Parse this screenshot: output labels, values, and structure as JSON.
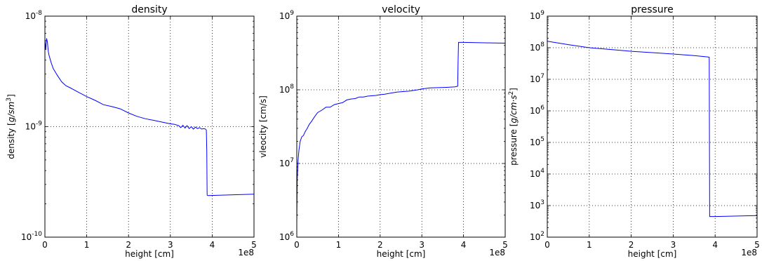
{
  "chart_data": [
    {
      "type": "line",
      "title": "density",
      "xlabel": "height [cm]",
      "ylabel": "density [g/sm^3]",
      "ylabel_parts": [
        "density [",
        "g/sm",
        "3",
        "]"
      ],
      "xlim": [
        0,
        5
      ],
      "x_ticks": [
        "0",
        "1",
        "2",
        "3",
        "4",
        "5"
      ],
      "x_offset_label": "1e8",
      "yscale": "log",
      "ylim": [
        1e-10,
        1e-08
      ],
      "y_ticks": [
        {
          "value": 1e-10,
          "base": "10",
          "exp": "-10"
        },
        {
          "value": 1e-09,
          "base": "10",
          "exp": "-9"
        },
        {
          "value": 1e-08,
          "base": "10",
          "exp": "-8"
        }
      ],
      "grid": true,
      "color": "#0000ff",
      "x": [
        0,
        0.02,
        0.04,
        0.06,
        0.08,
        0.1,
        0.15,
        0.2,
        0.3,
        0.4,
        0.5,
        0.6,
        0.8,
        1.0,
        1.2,
        1.4,
        1.6,
        1.8,
        2.0,
        2.2,
        2.4,
        2.6,
        2.8,
        3.0,
        3.1,
        3.2,
        3.25,
        3.3,
        3.35,
        3.4,
        3.45,
        3.5,
        3.55,
        3.6,
        3.65,
        3.7,
        3.75,
        3.8,
        3.84,
        3.86,
        3.87,
        3.88,
        3.9,
        5.0
      ],
      "y": [
        6e-09,
        5e-09,
        6.3e-09,
        5.8e-09,
        4.8e-09,
        4.4e-09,
        3.8e-09,
        3.35e-09,
        2.9e-09,
        2.55e-09,
        2.35e-09,
        2.25e-09,
        2.05e-09,
        1.87e-09,
        1.73e-09,
        1.58e-09,
        1.52e-09,
        1.45e-09,
        1.33e-09,
        1.24e-09,
        1.18e-09,
        1.14e-09,
        1.1e-09,
        1.06e-09,
        1.05e-09,
        1.02e-09,
        9.8e-10,
        1.03e-09,
        9.7e-10,
        1.02e-09,
        9.6e-10,
        1e-09,
        9.5e-10,
        9.9e-10,
        9.6e-10,
        9.8e-10,
        9.5e-10,
        9.6e-10,
        9.5e-10,
        9.3e-10,
        6e-10,
        2.4e-10,
        2.38e-10,
        2.45e-10
      ]
    },
    {
      "type": "line",
      "title": "velocity",
      "xlabel": "height [cm]",
      "ylabel": "vleocity [cm/s]",
      "xlim": [
        0,
        5
      ],
      "x_ticks": [
        "0",
        "1",
        "2",
        "3",
        "4",
        "5"
      ],
      "x_offset_label": "1e8",
      "yscale": "log",
      "ylim": [
        1000000.0,
        1000000000.0
      ],
      "y_ticks": [
        {
          "value": 1000000.0,
          "base": "10",
          "exp": "6"
        },
        {
          "value": 10000000.0,
          "base": "10",
          "exp": "7"
        },
        {
          "value": 100000000.0,
          "base": "10",
          "exp": "8"
        },
        {
          "value": 1000000000.0,
          "base": "10",
          "exp": "9"
        }
      ],
      "grid": true,
      "color": "#0000ff",
      "x": [
        0.0,
        0.01,
        0.03,
        0.05,
        0.08,
        0.12,
        0.16,
        0.2,
        0.25,
        0.3,
        0.35,
        0.4,
        0.45,
        0.5,
        0.6,
        0.7,
        0.8,
        0.9,
        1.0,
        1.1,
        1.2,
        1.3,
        1.4,
        1.5,
        1.6,
        1.7,
        1.8,
        1.9,
        2.0,
        2.1,
        2.2,
        2.3,
        2.4,
        2.5,
        2.6,
        2.7,
        2.8,
        2.9,
        3.0,
        3.2,
        3.4,
        3.6,
        3.8,
        3.86,
        3.87,
        3.88,
        4.0,
        4.5,
        5.0
      ],
      "y": [
        1600000.0,
        6000000.0,
        11000000.0,
        15000000.0,
        20000000.0,
        23000000.0,
        24000000.0,
        27000000.0,
        30000000.0,
        34000000.0,
        37000000.0,
        41000000.0,
        45000000.0,
        49000000.0,
        53000000.0,
        58000000.0,
        58000000.0,
        63000000.0,
        65000000.0,
        67000000.0,
        73000000.0,
        75000000.0,
        76000000.0,
        80000000.0,
        80000000.0,
        82000000.0,
        83000000.0,
        84000000.0,
        86000000.0,
        87000000.0,
        89000000.0,
        91000000.0,
        93000000.0,
        94000000.0,
        95000000.0,
        96000000.0,
        98000000.0,
        100000000.0,
        103000000.0,
        106000000.0,
        107000000.0,
        108000000.0,
        110000000.0,
        112000000.0,
        250000000.0,
        440000000.0,
        440000000.0,
        435000000.0,
        430000000.0
      ]
    },
    {
      "type": "line",
      "title": "pressure",
      "xlabel": "height [cm]",
      "ylabel": "pressure [g/cm·s^2]",
      "ylabel_parts": [
        "pressure [",
        "g/cm·s",
        "2",
        "]"
      ],
      "xlim": [
        0,
        5
      ],
      "x_ticks": [
        "0",
        "1",
        "2",
        "3",
        "4",
        "5"
      ],
      "x_offset_label": "1e8",
      "yscale": "log",
      "ylim": [
        100.0,
        1000000000.0
      ],
      "y_ticks": [
        {
          "value": 100.0,
          "base": "10",
          "exp": "2"
        },
        {
          "value": 1000.0,
          "base": "10",
          "exp": "3"
        },
        {
          "value": 10000.0,
          "base": "10",
          "exp": "4"
        },
        {
          "value": 100000.0,
          "base": "10",
          "exp": "5"
        },
        {
          "value": 1000000.0,
          "base": "10",
          "exp": "6"
        },
        {
          "value": 10000000.0,
          "base": "10",
          "exp": "7"
        },
        {
          "value": 100000000.0,
          "base": "10",
          "exp": "8"
        },
        {
          "value": 1000000000.0,
          "base": "10",
          "exp": "9"
        }
      ],
      "grid": true,
      "color": "#0000ff",
      "x": [
        0,
        0.5,
        1.0,
        1.5,
        2.0,
        2.5,
        3.0,
        3.5,
        3.84,
        3.86,
        3.87,
        4.0,
        5.0
      ],
      "y": [
        160000000.0,
        125000000.0,
        100000000.0,
        88000000.0,
        77000000.0,
        70000000.0,
        63000000.0,
        56000000.0,
        51000000.0,
        50000000.0,
        450.0,
        450.0,
        480.0
      ]
    }
  ]
}
